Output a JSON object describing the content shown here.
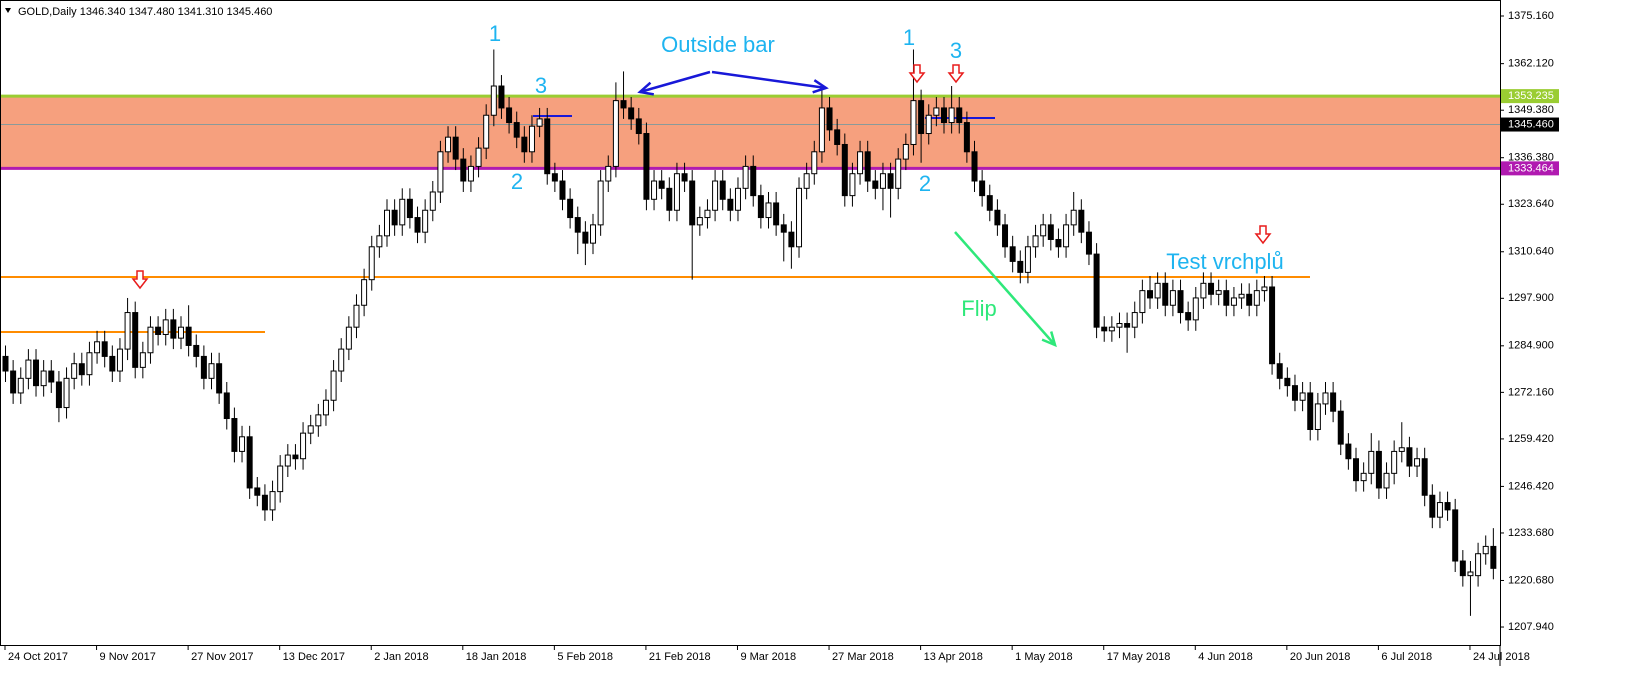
{
  "chart_data": {
    "type": "candlestick",
    "title": "GOLD,Daily  1346.340 1347.480 1341.310 1345.460",
    "ylim": [
      1203.02,
      1379.54
    ],
    "yticks": [
      {
        "value": 1375.16,
        "label": "1375.160"
      },
      {
        "value": 1362.12,
        "label": "1362.120"
      },
      {
        "value": 1349.38,
        "label": "1349.380"
      },
      {
        "value": 1336.38,
        "label": "1336.380"
      },
      {
        "value": 1323.64,
        "label": "1323.640"
      },
      {
        "value": 1310.64,
        "label": "1310.640"
      },
      {
        "value": 1297.9,
        "label": "1297.900"
      },
      {
        "value": 1284.9,
        "label": "1284.900"
      },
      {
        "value": 1272.16,
        "label": "1272.160"
      },
      {
        "value": 1259.42,
        "label": "1259.420"
      },
      {
        "value": 1246.42,
        "label": "1246.420"
      },
      {
        "value": 1233.68,
        "label": "1233.680"
      },
      {
        "value": 1220.68,
        "label": "1220.680"
      },
      {
        "value": 1207.94,
        "label": "1207.940"
      }
    ],
    "levels": [
      {
        "value": 1353.235,
        "label": "1353.235",
        "color": "#9acd32"
      },
      {
        "value": 1345.46,
        "label": "1345.460",
        "color": "#000000"
      },
      {
        "value": 1333.464,
        "label": "1333.464",
        "color": "#b01ab0"
      }
    ],
    "zone_color": "#f6a07e",
    "annotations": [
      {
        "text": "1"
      },
      {
        "text": "3"
      },
      {
        "text": "2"
      },
      {
        "text": "Outside bar"
      },
      {
        "text": "1"
      },
      {
        "text": "3"
      },
      {
        "text": "2"
      },
      {
        "text": "Flip"
      },
      {
        "text": "Test vrchplů"
      }
    ],
    "categories": [
      "24 Oct 2017",
      null,
      null,
      null,
      null,
      null,
      null,
      null,
      null,
      null,
      null,
      null,
      "9 Nov 2017",
      null,
      null,
      null,
      null,
      null,
      null,
      null,
      null,
      null,
      null,
      null,
      "27 Nov 2017",
      null,
      null,
      null,
      null,
      null,
      null,
      null,
      null,
      null,
      null,
      null,
      "13 Dec 2017",
      null,
      null,
      null,
      null,
      null,
      null,
      null,
      null,
      null,
      null,
      null,
      "2 Jan 2018",
      null,
      null,
      null,
      null,
      null,
      null,
      null,
      null,
      null,
      null,
      null,
      "18 Jan 2018",
      null,
      null,
      null,
      null,
      null,
      null,
      null,
      null,
      null,
      null,
      null,
      "5 Feb 2018",
      null,
      null,
      null,
      null,
      null,
      null,
      null,
      null,
      null,
      null,
      null,
      "21 Feb 2018",
      null,
      null,
      null,
      null,
      null,
      null,
      null,
      null,
      null,
      null,
      null,
      "9 Mar 2018",
      null,
      null,
      null,
      null,
      null,
      null,
      null,
      null,
      null,
      null,
      null,
      "27 Mar 2018",
      null,
      null,
      null,
      null,
      null,
      null,
      null,
      null,
      null,
      null,
      null,
      "13 Apr 2018",
      null,
      null,
      null,
      null,
      null,
      null,
      null,
      null,
      null,
      null,
      null,
      "1 May 2018",
      null,
      null,
      null,
      null,
      null,
      null,
      null,
      null,
      null,
      null,
      null,
      "17 May 2018",
      null,
      null,
      null,
      null,
      null,
      null,
      null,
      null,
      null,
      null,
      null,
      "4 Jun 2018",
      null,
      null,
      null,
      null,
      null,
      null,
      null,
      null,
      null,
      null,
      null,
      "20 Jun 2018",
      null,
      null,
      null,
      null,
      null,
      null,
      null,
      null,
      null,
      null,
      null,
      "6 Jul 2018",
      null,
      null,
      null,
      null,
      null,
      null,
      null,
      null,
      null,
      null,
      null,
      "24 Jul 2018",
      null,
      null,
      null
    ],
    "ohlc": [
      [
        1282,
        1285,
        1275,
        1278
      ],
      [
        1278,
        1281,
        1269,
        1272
      ],
      [
        1272,
        1279,
        1269,
        1276
      ],
      [
        1276,
        1284,
        1273,
        1281
      ],
      [
        1281,
        1284,
        1271,
        1274
      ],
      [
        1274,
        1281,
        1271,
        1278
      ],
      [
        1278,
        1281,
        1272,
        1275
      ],
      [
        1275,
        1278,
        1264,
        1268
      ],
      [
        1268,
        1279,
        1265,
        1276
      ],
      [
        1276,
        1283,
        1273,
        1280
      ],
      [
        1280,
        1283,
        1274,
        1277
      ],
      [
        1277,
        1286,
        1274,
        1283
      ],
      [
        1283,
        1289,
        1280,
        1286
      ],
      [
        1286,
        1289,
        1279,
        1282
      ],
      [
        1282,
        1285,
        1275,
        1278
      ],
      [
        1278,
        1287,
        1275,
        1284
      ],
      [
        1284,
        1298,
        1281,
        1294
      ],
      [
        1294,
        1297,
        1276,
        1279
      ],
      [
        1279,
        1286,
        1276,
        1283
      ],
      [
        1283,
        1293,
        1280,
        1290
      ],
      [
        1290,
        1293,
        1285,
        1288
      ],
      [
        1288,
        1295,
        1285,
        1292
      ],
      [
        1292,
        1295,
        1284,
        1287
      ],
      [
        1287,
        1293,
        1284,
        1290
      ],
      [
        1290,
        1296,
        1282,
        1285
      ],
      [
        1285,
        1288,
        1279,
        1282
      ],
      [
        1282,
        1285,
        1273,
        1276
      ],
      [
        1276,
        1283,
        1273,
        1280
      ],
      [
        1280,
        1283,
        1269,
        1272
      ],
      [
        1272,
        1275,
        1262,
        1265
      ],
      [
        1265,
        1268,
        1253,
        1256
      ],
      [
        1256,
        1263,
        1253,
        1260
      ],
      [
        1260,
        1263,
        1243,
        1246
      ],
      [
        1246,
        1249,
        1241,
        1244
      ],
      [
        1244,
        1247,
        1237,
        1240
      ],
      [
        1240,
        1248,
        1237,
        1245
      ],
      [
        1245,
        1255,
        1242,
        1252
      ],
      [
        1252,
        1258,
        1249,
        1255
      ],
      [
        1255,
        1258,
        1251,
        1254
      ],
      [
        1254,
        1264,
        1251,
        1261
      ],
      [
        1261,
        1266,
        1258,
        1263
      ],
      [
        1263,
        1269,
        1260,
        1266
      ],
      [
        1266,
        1273,
        1263,
        1270
      ],
      [
        1270,
        1281,
        1267,
        1278
      ],
      [
        1278,
        1287,
        1275,
        1284
      ],
      [
        1284,
        1293,
        1281,
        1290
      ],
      [
        1290,
        1299,
        1287,
        1296
      ],
      [
        1296,
        1306,
        1293,
        1303
      ],
      [
        1303,
        1315,
        1300,
        1312
      ],
      [
        1312,
        1318,
        1309,
        1315
      ],
      [
        1315,
        1325,
        1312,
        1322
      ],
      [
        1322,
        1325,
        1315,
        1318
      ],
      [
        1318,
        1328,
        1315,
        1325
      ],
      [
        1325,
        1328,
        1317,
        1320
      ],
      [
        1320,
        1323,
        1313,
        1316
      ],
      [
        1316,
        1325,
        1313,
        1322
      ],
      [
        1322,
        1330,
        1319,
        1327
      ],
      [
        1327,
        1341,
        1324,
        1338
      ],
      [
        1338,
        1345,
        1335,
        1342
      ],
      [
        1342,
        1345,
        1333,
        1336
      ],
      [
        1336,
        1339,
        1327,
        1330
      ],
      [
        1330,
        1337,
        1327,
        1334
      ],
      [
        1334,
        1342,
        1331,
        1339
      ],
      [
        1339,
        1351,
        1336,
        1348
      ],
      [
        1348,
        1366,
        1345,
        1356
      ],
      [
        1356,
        1359,
        1347,
        1350
      ],
      [
        1350,
        1353,
        1343,
        1346
      ],
      [
        1346,
        1349,
        1339,
        1342
      ],
      [
        1342,
        1345,
        1335,
        1338
      ],
      [
        1338,
        1348,
        1335,
        1345
      ],
      [
        1345,
        1350,
        1342,
        1347
      ],
      [
        1347,
        1350,
        1329,
        1332
      ],
      [
        1332,
        1335,
        1327,
        1330
      ],
      [
        1330,
        1333,
        1322,
        1325
      ],
      [
        1325,
        1328,
        1317,
        1320
      ],
      [
        1320,
        1323,
        1310,
        1316
      ],
      [
        1316,
        1319,
        1307,
        1313
      ],
      [
        1313,
        1321,
        1310,
        1318
      ],
      [
        1318,
        1333,
        1315,
        1330
      ],
      [
        1330,
        1337,
        1327,
        1334
      ],
      [
        1334,
        1357,
        1331,
        1352
      ],
      [
        1352,
        1360,
        1347,
        1350
      ],
      [
        1350,
        1353,
        1344,
        1347
      ],
      [
        1347,
        1350,
        1340,
        1343
      ],
      [
        1343,
        1346,
        1322,
        1325
      ],
      [
        1325,
        1333,
        1322,
        1330
      ],
      [
        1330,
        1333,
        1325,
        1328
      ],
      [
        1328,
        1331,
        1319,
        1322
      ],
      [
        1322,
        1335,
        1319,
        1332
      ],
      [
        1332,
        1335,
        1327,
        1330
      ],
      [
        1330,
        1333,
        1303,
        1318
      ],
      [
        1318,
        1323,
        1315,
        1320
      ],
      [
        1320,
        1325,
        1317,
        1322
      ],
      [
        1322,
        1333,
        1319,
        1330
      ],
      [
        1330,
        1333,
        1322,
        1325
      ],
      [
        1325,
        1328,
        1319,
        1322
      ],
      [
        1322,
        1331,
        1319,
        1328
      ],
      [
        1328,
        1337,
        1325,
        1334
      ],
      [
        1334,
        1337,
        1323,
        1326
      ],
      [
        1326,
        1329,
        1317,
        1320
      ],
      [
        1320,
        1327,
        1317,
        1324
      ],
      [
        1324,
        1327,
        1315,
        1318
      ],
      [
        1318,
        1321,
        1308,
        1316
      ],
      [
        1316,
        1319,
        1306,
        1312
      ],
      [
        1312,
        1331,
        1309,
        1328
      ],
      [
        1328,
        1335,
        1325,
        1332
      ],
      [
        1332,
        1341,
        1329,
        1338
      ],
      [
        1338,
        1355,
        1335,
        1350
      ],
      [
        1350,
        1353,
        1341,
        1344
      ],
      [
        1344,
        1347,
        1337,
        1340
      ],
      [
        1340,
        1343,
        1323,
        1326
      ],
      [
        1326,
        1335,
        1323,
        1332
      ],
      [
        1332,
        1341,
        1329,
        1338
      ],
      [
        1338,
        1341,
        1327,
        1330
      ],
      [
        1330,
        1333,
        1325,
        1328
      ],
      [
        1328,
        1335,
        1322,
        1332
      ],
      [
        1332,
        1335,
        1320,
        1328
      ],
      [
        1328,
        1339,
        1325,
        1336
      ],
      [
        1336,
        1343,
        1333,
        1340
      ],
      [
        1340,
        1366,
        1337,
        1352
      ],
      [
        1352,
        1355,
        1335,
        1343
      ],
      [
        1343,
        1351,
        1340,
        1348
      ],
      [
        1348,
        1353,
        1345,
        1350
      ],
      [
        1350,
        1353,
        1343,
        1346
      ],
      [
        1346,
        1356,
        1343,
        1350
      ],
      [
        1350,
        1353,
        1343,
        1346
      ],
      [
        1346,
        1349,
        1335,
        1338
      ],
      [
        1338,
        1341,
        1327,
        1330
      ],
      [
        1330,
        1333,
        1323,
        1326
      ],
      [
        1326,
        1329,
        1319,
        1322
      ],
      [
        1322,
        1325,
        1315,
        1318
      ],
      [
        1318,
        1321,
        1309,
        1312
      ],
      [
        1312,
        1315,
        1305,
        1308
      ],
      [
        1308,
        1311,
        1302,
        1305
      ],
      [
        1305,
        1315,
        1302,
        1312
      ],
      [
        1312,
        1318,
        1309,
        1315
      ],
      [
        1315,
        1321,
        1312,
        1318
      ],
      [
        1318,
        1321,
        1311,
        1314
      ],
      [
        1314,
        1317,
        1309,
        1312
      ],
      [
        1312,
        1321,
        1309,
        1318
      ],
      [
        1318,
        1327,
        1315,
        1322
      ],
      [
        1322,
        1325,
        1313,
        1316
      ],
      [
        1316,
        1319,
        1307,
        1310
      ],
      [
        1310,
        1313,
        1287,
        1290
      ],
      [
        1290,
        1293,
        1286,
        1289
      ],
      [
        1289,
        1293,
        1286,
        1290
      ],
      [
        1290,
        1294,
        1287,
        1291
      ],
      [
        1291,
        1294,
        1283,
        1290
      ],
      [
        1290,
        1297,
        1287,
        1294
      ],
      [
        1294,
        1303,
        1291,
        1300
      ],
      [
        1300,
        1304,
        1295,
        1298
      ],
      [
        1298,
        1305,
        1295,
        1302
      ],
      [
        1302,
        1305,
        1293,
        1296
      ],
      [
        1296,
        1303,
        1293,
        1300
      ],
      [
        1300,
        1303,
        1291,
        1294
      ],
      [
        1294,
        1297,
        1289,
        1292
      ],
      [
        1292,
        1301,
        1289,
        1298
      ],
      [
        1298,
        1305,
        1295,
        1302
      ],
      [
        1302,
        1305,
        1296,
        1299
      ],
      [
        1299,
        1303,
        1296,
        1300
      ],
      [
        1300,
        1303,
        1293,
        1296
      ],
      [
        1296,
        1301,
        1293,
        1298
      ],
      [
        1298,
        1302,
        1295,
        1299
      ],
      [
        1299,
        1302,
        1293,
        1296
      ],
      [
        1296,
        1303,
        1293,
        1300
      ],
      [
        1300,
        1304,
        1297,
        1301
      ],
      [
        1301,
        1304,
        1277,
        1280
      ],
      [
        1280,
        1283,
        1273,
        1276
      ],
      [
        1276,
        1279,
        1271,
        1274
      ],
      [
        1274,
        1277,
        1267,
        1270
      ],
      [
        1270,
        1275,
        1267,
        1272
      ],
      [
        1272,
        1275,
        1259,
        1262
      ],
      [
        1262,
        1272,
        1259,
        1269
      ],
      [
        1269,
        1275,
        1266,
        1272
      ],
      [
        1272,
        1275,
        1264,
        1267
      ],
      [
        1267,
        1270,
        1255,
        1258
      ],
      [
        1258,
        1261,
        1251,
        1254
      ],
      [
        1254,
        1257,
        1245,
        1248
      ],
      [
        1248,
        1253,
        1245,
        1250
      ],
      [
        1250,
        1261,
        1247,
        1256
      ],
      [
        1256,
        1259,
        1243,
        1246
      ],
      [
        1246,
        1253,
        1243,
        1250
      ],
      [
        1250,
        1259,
        1247,
        1256
      ],
      [
        1256,
        1264,
        1253,
        1257
      ],
      [
        1257,
        1260,
        1249,
        1252
      ],
      [
        1252,
        1257,
        1249,
        1254
      ],
      [
        1254,
        1257,
        1241,
        1244
      ],
      [
        1244,
        1247,
        1235,
        1238
      ],
      [
        1238,
        1245,
        1235,
        1242
      ],
      [
        1242,
        1245,
        1237,
        1240
      ],
      [
        1240,
        1243,
        1223,
        1226
      ],
      [
        1226,
        1229,
        1219,
        1222
      ],
      [
        1222,
        1226,
        1211,
        1223
      ],
      [
        1222,
        1231,
        1219,
        1228
      ],
      [
        1228,
        1233,
        1225,
        1230
      ],
      [
        1230,
        1235,
        1221,
        1224
      ]
    ]
  }
}
